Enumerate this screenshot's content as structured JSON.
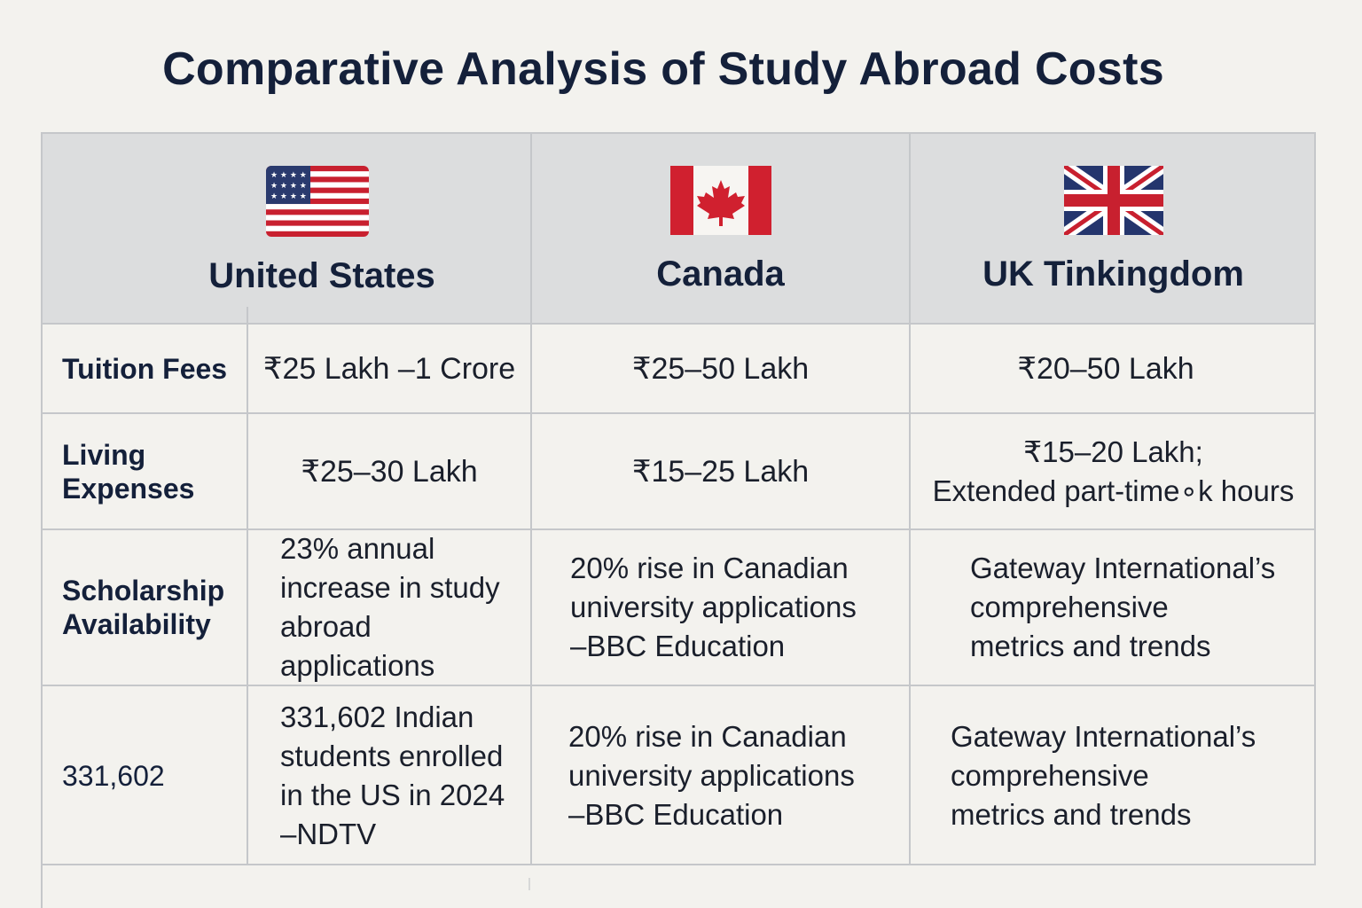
{
  "title": "Comparative Analysis of Study Abroad Costs",
  "countries": [
    {
      "name": "United States",
      "flag": "us-flag"
    },
    {
      "name": "Canada",
      "flag": "canada-flag"
    },
    {
      "name": "UK Tinkingdom",
      "flag": "uk-flag"
    }
  ],
  "rows": [
    {
      "label": "Tuition Fees",
      "values": [
        "₹25 Lakh –1 Crore",
        "₹25–50 Lakh",
        "₹20–50 Lakh"
      ]
    },
    {
      "label": "Living\nExpenses",
      "values": [
        "₹25–30 Lakh",
        "₹15–25 Lakh",
        "₹15–20 Lakh;\nExtended part-time∘k hours"
      ]
    },
    {
      "label": "Scholarship\nAvailability",
      "values": [
        "23% annual\nincrease in study\nabroad applications",
        "20% rise in Canadian\nuniversity applications\n–BBC Education",
        "Gateway International’s\ncomprehensive\nmetrics and trends"
      ]
    },
    {
      "label": "331,602",
      "values": [
        "331,602 Indian\nstudents enrolled\nin the US in 2024\n–NDTV",
        "20% rise in Canadian\nuniversity applications\n–BBC Education",
        "Gateway International’s\ncomprehensive\nmetrics and trends"
      ]
    }
  ],
  "colors": {
    "background": "#f3f2ee",
    "header": "#dcddde",
    "text": "#14203a",
    "grid": "#c5c7ca",
    "flag_red": "#c8202f",
    "flag_blue": "#2a3a6e"
  }
}
